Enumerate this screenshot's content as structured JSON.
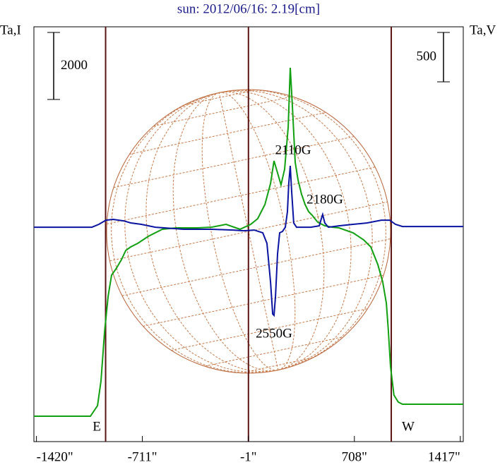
{
  "chart_data": {
    "type": "line",
    "title": "sun: 2012/06/16: 2.19[cm]",
    "ylabel": "Ta,I",
    "y2label": "Ta,V",
    "xlim": [
      -1437,
      1437
    ],
    "xticks": [
      {
        "value": -1420,
        "label": "-1420\""
      },
      {
        "value": -711,
        "label": "-711\""
      },
      {
        "value": -1,
        "label": "-1\""
      },
      {
        "value": 708,
        "label": "708\""
      },
      {
        "value": 1417,
        "label": "1417\""
      }
    ],
    "ylim": [
      0,
      12378
    ],
    "y2lim": [
      -2171,
      2029
    ],
    "vlines": [
      -957,
      -1,
      955
    ],
    "vline_color": "#5a1414",
    "scale_bars": [
      {
        "value": 2000,
        "axis": "y"
      },
      {
        "value": 500,
        "axis": "y2"
      }
    ],
    "annotations": [
      "2110G",
      "2180G",
      "2550G",
      "E",
      "W"
    ],
    "series": [
      {
        "color": "#10a010",
        "x": [
          -1437,
          -1059,
          -1011,
          -988,
          -964,
          -940,
          -917,
          -884,
          -851,
          -822,
          -789,
          -742,
          -671,
          -577,
          -482,
          -340,
          -246,
          -151,
          -57,
          14,
          61,
          109,
          147,
          170,
          194,
          217,
          241,
          265,
          279,
          293,
          312,
          331,
          354,
          378,
          402,
          425,
          463,
          510,
          558,
          605,
          699,
          770,
          818,
          865,
          898,
          922,
          936,
          950,
          973,
          1002,
          1030,
          1437
        ],
        "values": [
          758,
          758,
          1074,
          1810,
          3284,
          4336,
          4968,
          5178,
          5431,
          5705,
          5810,
          5915,
          6126,
          6336,
          6378,
          6378,
          6399,
          6483,
          6336,
          6483,
          6652,
          7073,
          7704,
          8378,
          8020,
          7662,
          8125,
          9388,
          11157,
          10020,
          8336,
          7810,
          7389,
          7073,
          6862,
          6757,
          6547,
          6441,
          6399,
          6378,
          6231,
          6020,
          5810,
          5284,
          4757,
          4126,
          3284,
          2231,
          1389,
          1179,
          1116,
          1116
        ]
      },
      {
        "color": "#0a14a0",
        "axis": "y2",
        "x": [
          -1437,
          -1049,
          -1002,
          -955,
          -907,
          -836,
          -789,
          -718,
          -624,
          -435,
          -246,
          -104,
          -33,
          38,
          95,
          123,
          147,
          161,
          170,
          180,
          194,
          208,
          227,
          246,
          260,
          269,
          279,
          288,
          302,
          321,
          416,
          473,
          487,
          496,
          510,
          534,
          605,
          699,
          794,
          888,
          945,
          983,
          1030,
          1437
        ],
        "values": [
          0,
          0,
          29,
          71,
          79,
          64,
          43,
          29,
          0,
          -21,
          -21,
          -29,
          -36,
          -29,
          -57,
          -164,
          -557,
          -879,
          -893,
          -700,
          -271,
          -57,
          -43,
          0,
          157,
          443,
          621,
          371,
          43,
          0,
          0,
          14,
          86,
          129,
          43,
          0,
          14,
          29,
          43,
          71,
          71,
          29,
          7,
          7
        ]
      }
    ]
  }
}
